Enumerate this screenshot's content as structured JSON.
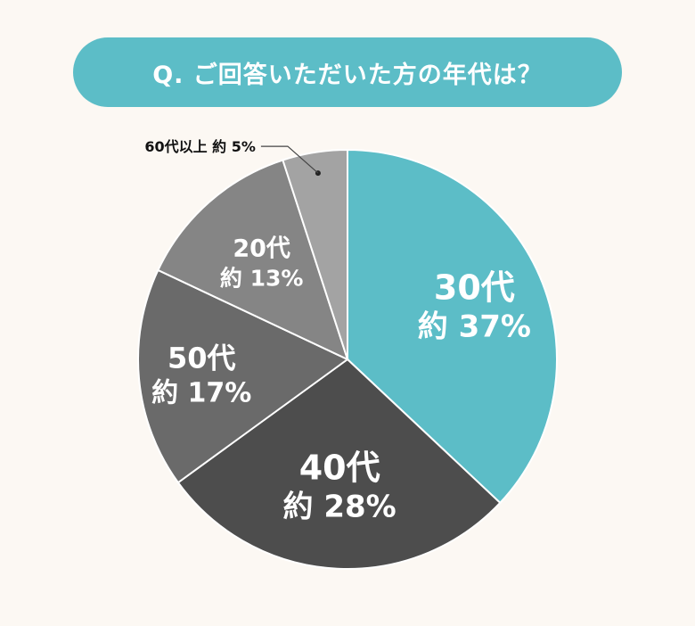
{
  "title": "Q. ご回答いただいた方の年代は？",
  "chart_data": {
    "type": "pie",
    "categories": [
      "30代",
      "40代",
      "50代",
      "20代",
      "60代以上"
    ],
    "values": [
      37,
      28,
      17,
      13,
      5
    ],
    "labels": [
      {
        "name": "30代",
        "value_text": "約 37%"
      },
      {
        "name": "40代",
        "value_text": "約 28%"
      },
      {
        "name": "50代",
        "value_text": "約 17%"
      },
      {
        "name": "20代",
        "value_text": "約 13%"
      },
      {
        "name": "60代以上",
        "value_text": "約 5%"
      }
    ],
    "colors": [
      "#5cbdc7",
      "#4d4d4d",
      "#6a6a6a",
      "#858585",
      "#a3a3a3"
    ],
    "start": "12 o'clock",
    "direction": "clockwise"
  }
}
